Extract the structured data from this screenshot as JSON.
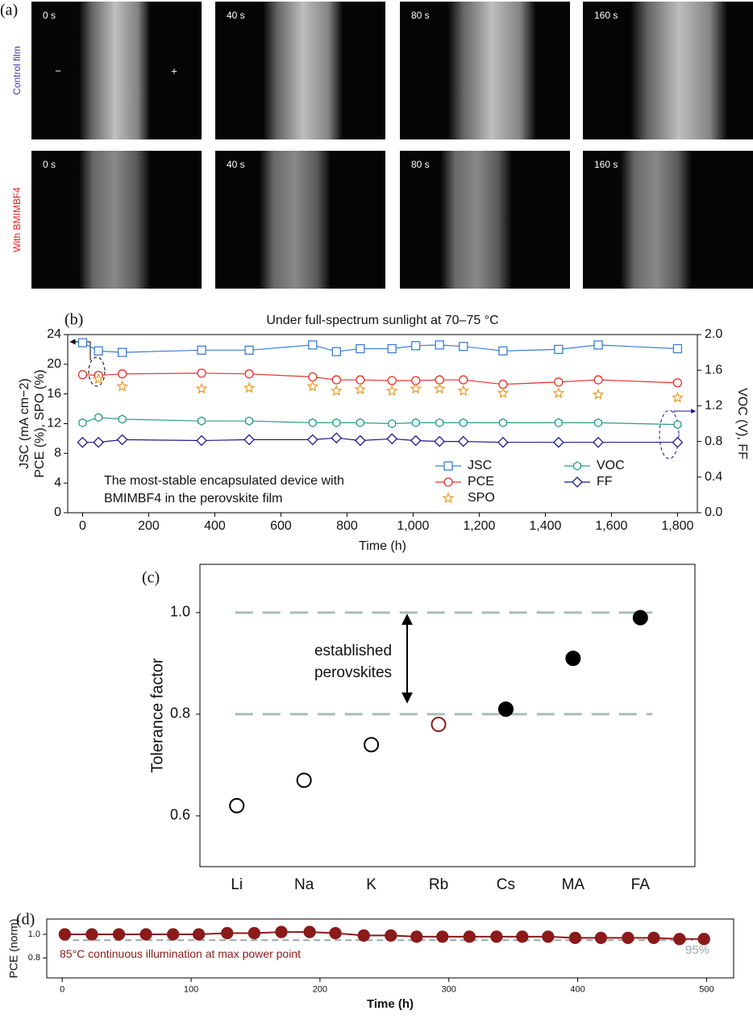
{
  "panel_a": {
    "label": "(a)",
    "rows": [
      {
        "name": "Control film",
        "color": "#3a3aa0",
        "times": [
          "0 s",
          "40 s",
          "80 s",
          "160 s"
        ]
      },
      {
        "name": "With BMIMBF4",
        "color": "#e02020",
        "times": [
          "0 s",
          "40 s",
          "80 s",
          "160 s"
        ]
      }
    ],
    "electrodes": [
      "−",
      "+"
    ]
  },
  "chart_data": [
    {
      "type": "line",
      "label": "(b)",
      "title": "Under full-spectrum sunlight at 70–75 °C",
      "xlabel": "Time (h)",
      "ylabel": [
        "JSC (mA cm−2)",
        "PCE (%), SPO (%)"
      ],
      "y2label": "VOC (V), FF",
      "annotation": [
        "The most-stable encapsulated device with",
        "BMIMBF4 in the perovskite film"
      ],
      "x": [
        0,
        48,
        120,
        360,
        504,
        696,
        768,
        840,
        936,
        1008,
        1080,
        1152,
        1272,
        1440,
        1560,
        1800
      ],
      "xlim": [
        -45,
        1860
      ],
      "xticks": [
        0,
        200,
        400,
        600,
        800,
        {
          "value": 1000,
          "label": "1,000"
        },
        {
          "value": 1200,
          "label": "1,200"
        },
        {
          "value": 1400,
          "label": "1,400"
        },
        {
          "value": 1600,
          "label": "1,600"
        },
        {
          "value": 1800,
          "label": "1,800"
        }
      ],
      "ylim": [
        0,
        24
      ],
      "yticks": [
        0,
        4,
        8,
        12,
        16,
        20,
        24
      ],
      "y2lim": [
        0,
        2
      ],
      "y2ticks": [
        {
          "value": 0,
          "label": "0.0"
        },
        0.4,
        0.8,
        1.2,
        1.6,
        {
          "value": 2,
          "label": "2.0"
        }
      ],
      "series": [
        {
          "name": "JSC",
          "color": "#3a7fd5",
          "marker": "square",
          "line": true,
          "values": [
            22.9,
            21.8,
            21.6,
            21.9,
            21.9,
            22.6,
            21.7,
            22.1,
            22.1,
            22.5,
            22.6,
            22.4,
            21.8,
            22.0,
            22.6,
            22.1
          ]
        },
        {
          "name": "PCE",
          "color": "#e8302a",
          "marker": "circle",
          "line": true,
          "values": [
            18.6,
            18.5,
            18.7,
            18.8,
            18.7,
            18.3,
            17.9,
            17.9,
            17.8,
            17.8,
            17.9,
            17.9,
            17.3,
            17.6,
            17.9,
            17.5
          ]
        },
        {
          "name": "SPO",
          "color": "#e8a030",
          "marker": "star",
          "line": false,
          "values": [
            null,
            18.0,
            17.0,
            16.7,
            16.8,
            17.0,
            16.4,
            16.6,
            16.4,
            16.7,
            16.7,
            16.4,
            16.1,
            16.1,
            15.9,
            15.5
          ]
        },
        {
          "name": "VOC",
          "color": "#2a9a8a",
          "marker": "hexagon",
          "line": true,
          "axis": "y2",
          "values": [
            1.01,
            1.07,
            1.05,
            1.03,
            1.03,
            1.01,
            1.01,
            1.01,
            1.0,
            1.01,
            1.01,
            1.01,
            1.01,
            1.01,
            1.01,
            0.99
          ]
        },
        {
          "name": "FF",
          "color": "#1a1a8a",
          "marker": "diamond",
          "line": true,
          "axis": "y2",
          "values": [
            0.79,
            0.79,
            0.82,
            0.81,
            0.82,
            0.82,
            0.84,
            0.81,
            0.83,
            0.81,
            0.8,
            0.8,
            0.79,
            0.79,
            0.79,
            0.79
          ]
        }
      ]
    },
    {
      "type": "scatter",
      "label": "(c)",
      "ylabel": "Tolerance factor",
      "categories": [
        "Li",
        "Na",
        "K",
        "Rb",
        "Cs",
        "MA",
        "FA"
      ],
      "values": [
        0.62,
        0.67,
        0.74,
        0.78,
        0.81,
        0.91,
        0.99
      ],
      "colors": [
        "#000000",
        "#000000",
        "#000000",
        "#8b1a1a",
        "#000000",
        "#000000",
        "#000000"
      ],
      "filled": [
        false,
        false,
        false,
        false,
        true,
        true,
        true
      ],
      "ylim": [
        0.5,
        1.095
      ],
      "yticks": [
        0.6,
        0.8,
        {
          "value": 1,
          "label": "1.0"
        }
      ],
      "hlines": [
        0.8,
        1.0
      ],
      "annotation": [
        "established",
        "perovskites"
      ]
    },
    {
      "type": "line",
      "label": "(d)",
      "xlabel": "Time (h)",
      "ylabel": "PCE (norm)",
      "annotation": "85°C continuous illumination at max power point",
      "x": [
        2,
        23,
        44,
        65,
        86,
        106,
        128,
        149,
        170,
        192,
        212,
        234,
        255,
        275,
        295,
        316,
        337,
        357,
        377,
        398,
        418,
        439,
        459,
        479,
        498
      ],
      "values": [
        1.0,
        1.0,
        1.0,
        1.0,
        1.0,
        1.0,
        1.01,
        1.01,
        1.02,
        1.02,
        1.01,
        0.99,
        0.99,
        0.98,
        0.98,
        0.98,
        0.98,
        0.98,
        0.98,
        0.97,
        0.97,
        0.97,
        0.97,
        0.96,
        0.96
      ],
      "color": "#8b1a1a",
      "marker": "circle-filled",
      "xlim": [
        -12,
        521
      ],
      "xticks": [
        0,
        100,
        200,
        300,
        400,
        500
      ],
      "ylim": [
        0.63,
        1.13
      ],
      "yticks": [
        0.8,
        {
          "value": 1,
          "label": "1.0"
        }
      ],
      "hline": {
        "value": 0.95,
        "label": "95%",
        "color": "#9aa8a8"
      }
    }
  ]
}
